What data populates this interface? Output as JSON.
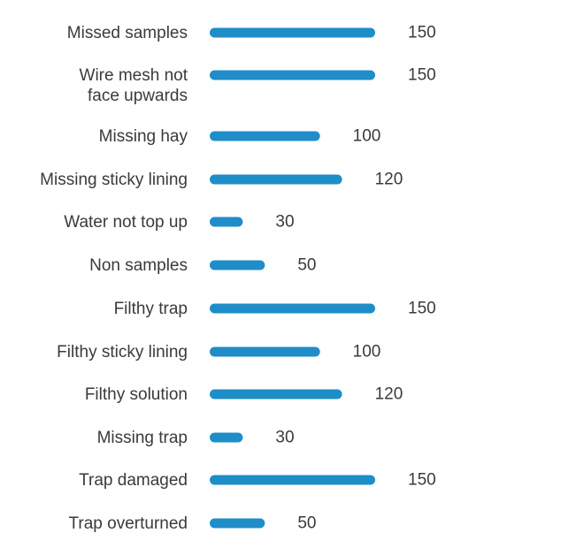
{
  "chart_data": {
    "type": "bar",
    "orientation": "horizontal",
    "categories": [
      [
        "Missed samples"
      ],
      [
        "Wire mesh not",
        "face upwards"
      ],
      [
        "Missing hay"
      ],
      [
        "Missing sticky lining"
      ],
      [
        "Water not top up"
      ],
      [
        "Non samples"
      ],
      [
        "Filthy trap"
      ],
      [
        "Filthy sticky lining"
      ],
      [
        "Filthy solution"
      ],
      [
        "Missing trap"
      ],
      [
        "Trap damaged"
      ],
      [
        "Trap overturned"
      ]
    ],
    "values": [
      150,
      150,
      100,
      120,
      30,
      50,
      150,
      100,
      120,
      30,
      150,
      50
    ],
    "value_labels": [
      "150",
      "150",
      "100",
      "120",
      "30",
      "50",
      "150",
      "100",
      "120",
      "30",
      "150",
      "50"
    ],
    "bar_color": "#1f8dc8",
    "xlim": [
      0,
      150
    ],
    "grid": false,
    "title": "",
    "xlabel": "",
    "ylabel": ""
  }
}
